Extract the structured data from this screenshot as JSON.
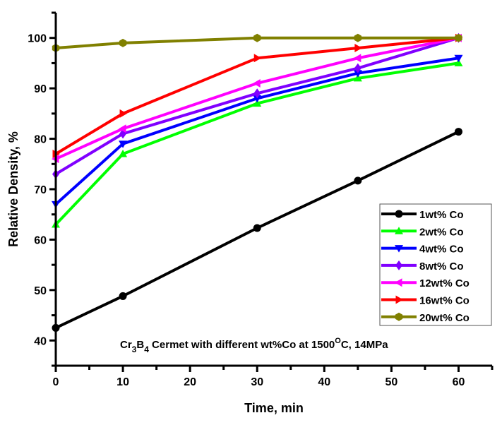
{
  "chart_data": {
    "type": "line",
    "title": "",
    "xlabel": "Time, min",
    "ylabel": "Relative Density, %",
    "xlim": [
      0,
      65
    ],
    "ylim": [
      35,
      105
    ],
    "x_ticks": [
      0,
      10,
      20,
      30,
      40,
      50,
      60
    ],
    "y_ticks": [
      40,
      50,
      60,
      70,
      80,
      90,
      100
    ],
    "grid": false,
    "legend_position": "right-lower",
    "annotation": {
      "prefix": "Cr",
      "sub1": "3",
      "mid": "B",
      "sub2": "4",
      "text": " Cermet with different wt%Co at 1500",
      "sup": "O",
      "suffix": "C, 14MPa"
    },
    "x": [
      0,
      10,
      30,
      45,
      60
    ],
    "series": [
      {
        "name": "1wt% Co",
        "color": "#000000",
        "marker": "circle",
        "values": [
          42.5,
          48.8,
          62.3,
          71.7,
          81.4
        ]
      },
      {
        "name": "2wt% Co",
        "color": "#00ff00",
        "marker": "triangle-up",
        "values": [
          63,
          77,
          87,
          92,
          95
        ]
      },
      {
        "name": "4wt% Co",
        "color": "#0000ff",
        "marker": "triangle-down",
        "values": [
          67,
          79,
          88,
          93,
          96
        ]
      },
      {
        "name": "8wt% Co",
        "color": "#8000ff",
        "marker": "diamond",
        "values": [
          73,
          81,
          89,
          94,
          100
        ]
      },
      {
        "name": "12wt% Co",
        "color": "#ff00ff",
        "marker": "triangle-left",
        "values": [
          76,
          82,
          91,
          96,
          100
        ]
      },
      {
        "name": "16wt% Co",
        "color": "#ff0000",
        "marker": "triangle-right",
        "values": [
          77,
          85,
          96,
          98,
          100
        ]
      },
      {
        "name": "20wt% Co",
        "color": "#808000",
        "marker": "hexagon",
        "values": [
          98,
          99,
          100,
          100,
          100
        ]
      }
    ]
  }
}
